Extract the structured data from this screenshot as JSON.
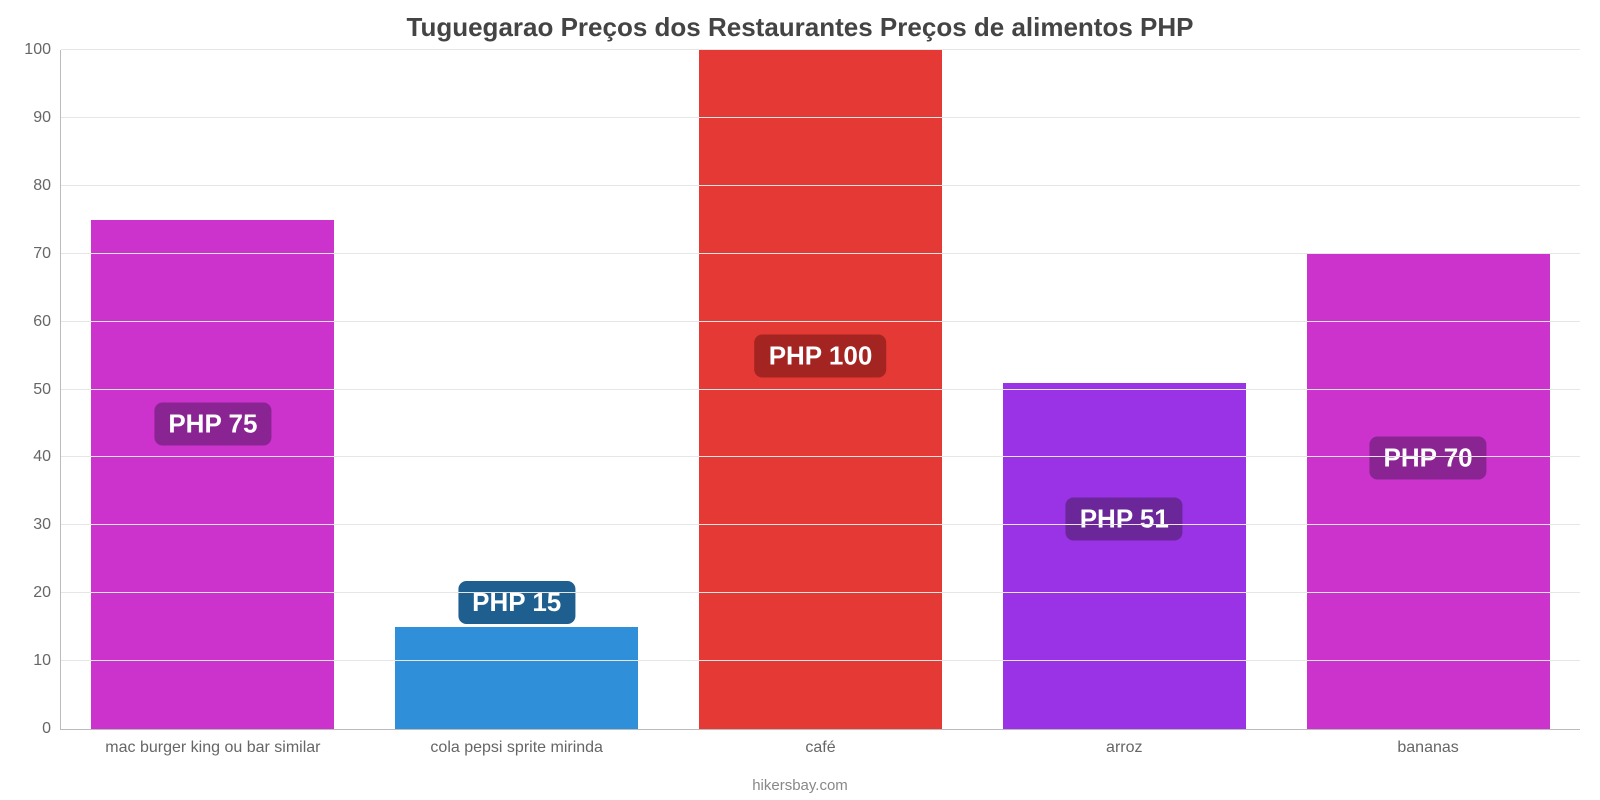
{
  "chart": {
    "type": "bar",
    "title": "Tuguegarao Preços dos Restaurantes Preços de alimentos PHP",
    "title_fontsize": 26,
    "title_color": "#444444",
    "footer": "hikersbay.com",
    "footer_fontsize": 15,
    "footer_color": "#888888",
    "background_color": "#ffffff",
    "axis_color": "#bbbbbb",
    "grid_color": "#e6e6e6",
    "tick_label_color": "#666666",
    "tick_label_fontsize": 16,
    "xtick_label_fontsize": 16,
    "value_label_fontsize": 26,
    "value_label_text_color": "#ffffff",
    "value_label_prefix": "PHP ",
    "ylim": [
      0,
      100
    ],
    "yticks": [
      0,
      10,
      20,
      30,
      40,
      50,
      60,
      70,
      80,
      90,
      100
    ],
    "bar_width_pct": 80,
    "categories": [
      "mac burger king ou bar similar",
      "cola pepsi sprite mirinda",
      "café",
      "arroz",
      "bananas"
    ],
    "values": [
      75,
      15,
      100,
      51,
      70
    ],
    "bar_colors": [
      "#cc33cc",
      "#2f8fd9",
      "#e53935",
      "#9933e5",
      "#cc33cc"
    ],
    "value_label_bg_colors": [
      "#8a2493",
      "#1e5f8f",
      "#a32421",
      "#6b2799",
      "#8a2493"
    ],
    "value_label_offsets_pct": [
      -30,
      3,
      -45,
      -20,
      -30
    ]
  }
}
